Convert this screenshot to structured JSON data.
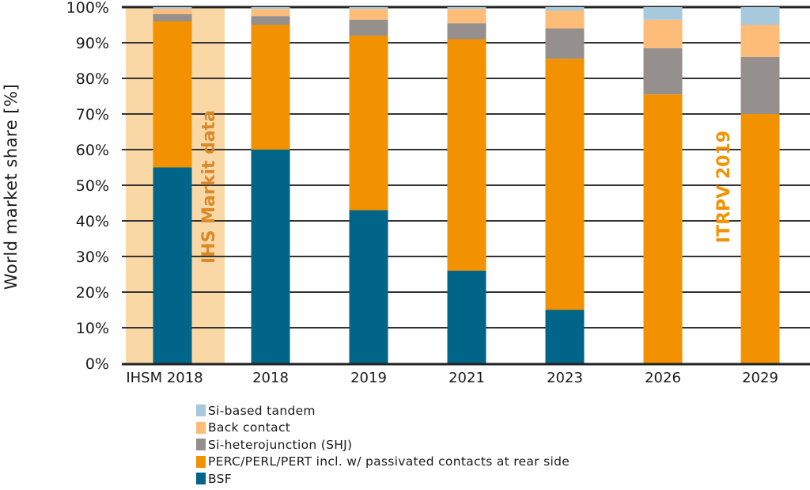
{
  "chart_data": {
    "type": "bar",
    "stacked": true,
    "title": "",
    "xlabel": "",
    "ylabel": "World market share [%]",
    "ylim": [
      0,
      100
    ],
    "yticks": [
      "0%",
      "10%",
      "20%",
      "30%",
      "40%",
      "50%",
      "60%",
      "70%",
      "80%",
      "90%",
      "100%"
    ],
    "grid": "horizontal",
    "categories": [
      "IHSM 2018",
      "2018",
      "2019",
      "2021",
      "2023",
      "2026",
      "2029"
    ],
    "series": [
      {
        "name": "BSF",
        "color": "#006589",
        "values": [
          55,
          60,
          43,
          26,
          15,
          0,
          0
        ]
      },
      {
        "name": "PERC/PERL/PERT incl. w/ passivated contacts at rear side",
        "color": "#f39200",
        "values": [
          41,
          35,
          49,
          65,
          70.5,
          75.5,
          70
        ]
      },
      {
        "name": "Si-heterojunction (SHJ)",
        "color": "#958f8d",
        "values": [
          2,
          2.5,
          4.5,
          4.5,
          8.5,
          13,
          16
        ]
      },
      {
        "name": "Back contact",
        "color": "#fdbd78",
        "values": [
          1.5,
          2,
          3,
          4,
          5,
          8,
          9
        ]
      },
      {
        "name": "Si-based tandem",
        "color": "#a8c8de",
        "values": [
          0.5,
          0.5,
          0.5,
          0.5,
          1,
          3.5,
          5
        ]
      }
    ],
    "legend_position": "bottom",
    "legend_order": [
      "Si-based tandem",
      "Back contact",
      "Si-heterojunction (SHJ)",
      "PERC/PERL/PERT incl. w/ passivated contacts at rear side",
      "BSF"
    ],
    "annotations": [
      {
        "text": "IHS Markit data",
        "color": "#d9801a",
        "orientation": "vertical",
        "region_background": "#fad8a5",
        "category": "IHSM 2018"
      },
      {
        "text": "ITRPV 2019",
        "color": "#f39200",
        "orientation": "vertical",
        "category": "2029"
      }
    ]
  },
  "colors": {
    "axis": "#222222",
    "grid": "#333333",
    "highlight_region": "#fad8a5",
    "ihs_label": "#d98a2a",
    "itrpv_label": "#f39200"
  }
}
